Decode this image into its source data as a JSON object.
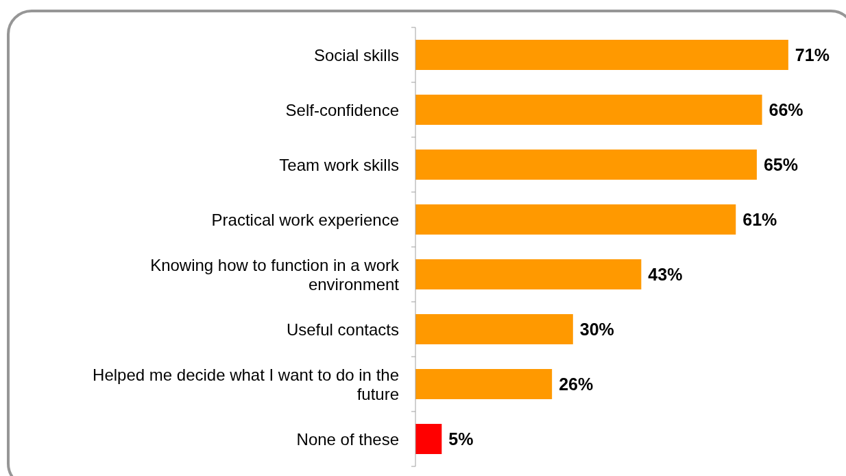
{
  "chart_data": {
    "type": "bar",
    "orientation": "horizontal",
    "categories": [
      "Social skills",
      "Self-confidence",
      "Team work skills",
      "Practical work experience",
      "Knowing how to function in a work environment",
      "Useful contacts",
      "Helped me decide what I want to do in the future",
      "None of these"
    ],
    "values": [
      71,
      66,
      65,
      61,
      43,
      30,
      26,
      5
    ],
    "colors": [
      "#ff9900",
      "#ff9900",
      "#ff9900",
      "#ff9900",
      "#ff9900",
      "#ff9900",
      "#ff9900",
      "#ff0000"
    ],
    "value_labels": [
      "71%",
      "66%",
      "65%",
      "61%",
      "43%",
      "30%",
      "26%",
      "5%"
    ],
    "relative": false
  }
}
